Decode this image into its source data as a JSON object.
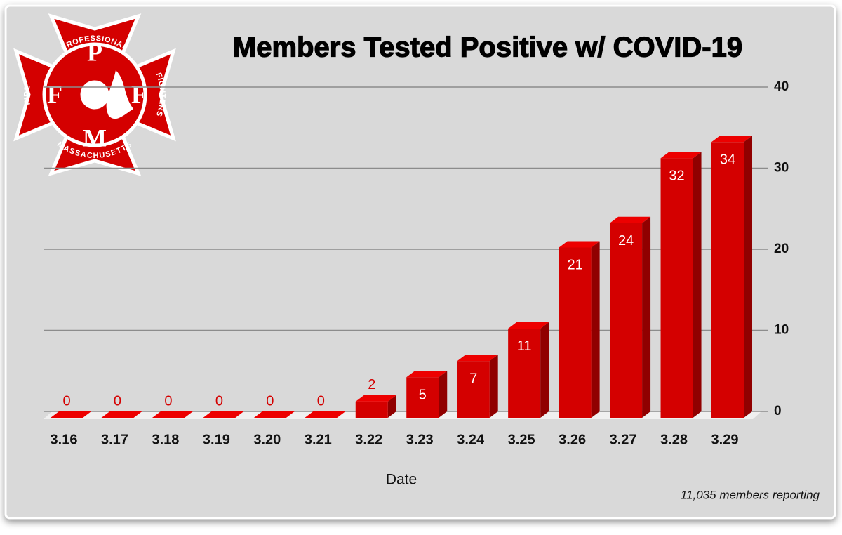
{
  "chart_data": {
    "type": "bar3d",
    "title": "Members Tested Positive w/ COVID-19",
    "x_label": "Date",
    "note": "11,035 members reporting",
    "logo": {
      "letters": [
        "P",
        "F",
        "F",
        "M"
      ],
      "ring": [
        "PROFESSIONAL",
        "FIRE",
        "FIGHTERS",
        "MASSACHUSETTS"
      ]
    },
    "categories": [
      "3.16",
      "3.17",
      "3.18",
      "3.19",
      "3.20",
      "3.21",
      "3.22",
      "3.23",
      "3.24",
      "3.25",
      "3.26",
      "3.27",
      "3.28",
      "3.29"
    ],
    "values": [
      0,
      0,
      0,
      0,
      0,
      0,
      2,
      5,
      7,
      11,
      21,
      24,
      32,
      34
    ],
    "color": "#d40000",
    "ylim": [
      0,
      40
    ],
    "yticks": [
      0,
      10,
      20,
      30,
      40
    ],
    "grid": true
  }
}
